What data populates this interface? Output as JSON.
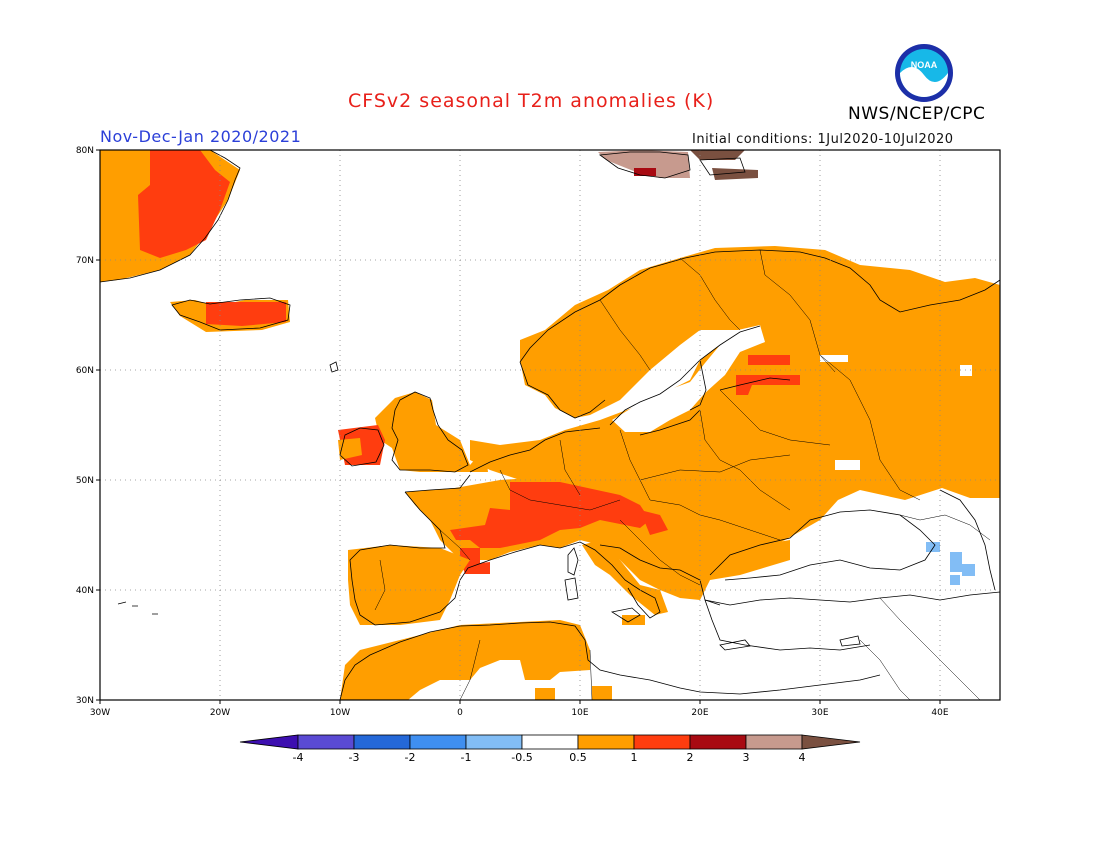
{
  "header": {
    "title": "CFSv2 seasonal T2m anomalies (K)",
    "organization": "NWS/NCEP/CPC",
    "period": "Nov-Dec-Jan 2020/2021",
    "initial_conditions": "Initial conditions: 1Jul2020-10Jul2020",
    "logo_text": "NOAA"
  },
  "map": {
    "lon_range": [
      -30,
      45
    ],
    "lat_range": [
      30,
      80
    ],
    "lon_ticks": [
      {
        "value": -30,
        "label": "30W"
      },
      {
        "value": -20,
        "label": "20W"
      },
      {
        "value": -10,
        "label": "10W"
      },
      {
        "value": 0,
        "label": "0"
      },
      {
        "value": 10,
        "label": "10E"
      },
      {
        "value": 20,
        "label": "20E"
      },
      {
        "value": 30,
        "label": "30E"
      },
      {
        "value": 40,
        "label": "40E"
      }
    ],
    "lat_ticks": [
      {
        "value": 80,
        "label": "80N"
      },
      {
        "value": 70,
        "label": "70N"
      },
      {
        "value": 60,
        "label": "60N"
      },
      {
        "value": 50,
        "label": "50N"
      },
      {
        "value": 40,
        "label": "40N"
      },
      {
        "value": 30,
        "label": "30N"
      }
    ],
    "grid": true
  },
  "colorbar": {
    "labels": [
      "-4",
      "-3",
      "-2",
      "-1",
      "-0.5",
      "0.5",
      "1",
      "2",
      "3",
      "4"
    ],
    "colors": [
      "#3d0fb0",
      "#5a4ad3",
      "#2468d8",
      "#3f8ff0",
      "#82bdf5",
      "#ffffff",
      "#ff9e00",
      "#ff3d0f",
      "#a80a12",
      "#c79a8e",
      "#7a5040"
    ]
  }
}
